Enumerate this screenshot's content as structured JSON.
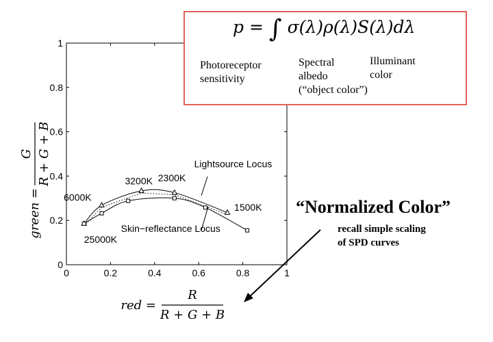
{
  "chart_data": {
    "type": "line",
    "xlim": [
      0,
      1
    ],
    "ylim": [
      0,
      1
    ],
    "xticks": [
      "0",
      "0.2",
      "0.4",
      "0.6",
      "0.8",
      "1"
    ],
    "yticks": [
      "0",
      "0.2",
      "0.4",
      "0.6",
      "0.8",
      "1"
    ],
    "xlabel": "",
    "ylabel": "",
    "grid": false,
    "series": [
      {
        "name": "Lightsource Locus",
        "marker": "triangle",
        "style": "dotted",
        "points": [
          [
            0.08,
            0.185
          ],
          [
            0.16,
            0.268
          ],
          [
            0.34,
            0.333
          ],
          [
            0.49,
            0.325
          ],
          [
            0.73,
            0.235
          ]
        ]
      },
      {
        "name": "Skin-reflectance Locus",
        "marker": "square",
        "style": "solid",
        "points": [
          [
            0.08,
            0.185
          ],
          [
            0.16,
            0.232
          ],
          [
            0.28,
            0.288
          ],
          [
            0.49,
            0.3
          ],
          [
            0.63,
            0.258
          ],
          [
            0.82,
            0.155
          ]
        ]
      }
    ],
    "annotations": [
      {
        "text": "6000K",
        "x": 0.165,
        "y": 0.27
      },
      {
        "text": "3200K",
        "x": 0.34,
        "y": 0.335
      },
      {
        "text": "2300K",
        "x": 0.49,
        "y": 0.33
      },
      {
        "text": "Lightsource Locus",
        "x": 0.62,
        "y": 0.31
      },
      {
        "text": "1500K",
        "x": 0.73,
        "y": 0.235
      },
      {
        "text": "25000K",
        "x": 0.08,
        "y": 0.185
      },
      {
        "text": "Skin−reflectance Locus",
        "x": 0.62,
        "y": 0.26
      }
    ]
  },
  "labels": {
    "ylabel_green": "green =",
    "ylabel_num": "G",
    "ylabel_den": "R + G + B",
    "xlabel_red": "red =",
    "xlabel_num": "R",
    "xlabel_den": "R + G + B"
  },
  "formula": {
    "lhs": "p =",
    "int": "∫",
    "rhs": "σ(λ)ρ(λ)S(λ)dλ",
    "term1": [
      "Photoreceptor",
      "sensitivity"
    ],
    "term2": [
      "Spectral",
      "albedo",
      "(“object color”)"
    ],
    "term3": [
      "Illuminant",
      "color"
    ]
  },
  "note": {
    "title": "“Normalized Color”",
    "sub": [
      "recall simple scaling",
      "of SPD curves"
    ]
  },
  "colors": {
    "box_border": "#e0605a",
    "ink": "#000000"
  }
}
